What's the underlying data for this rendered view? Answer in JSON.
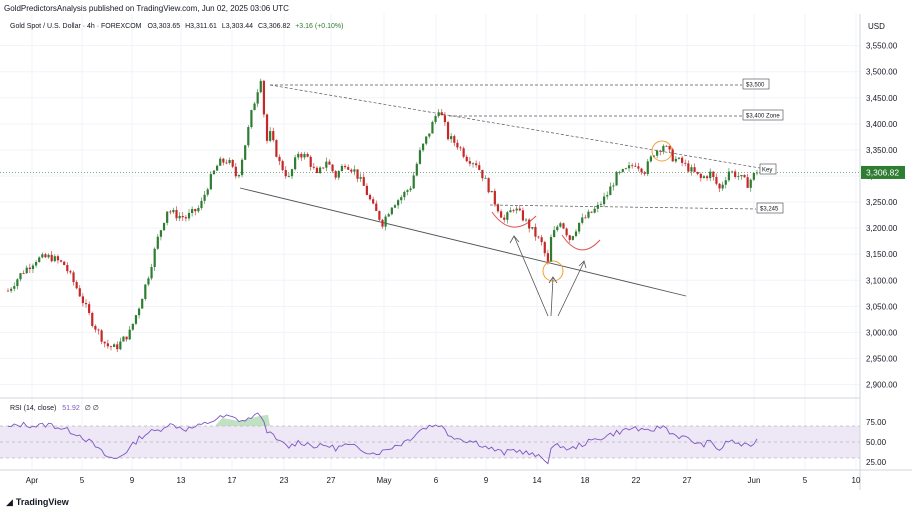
{
  "header": {
    "publisher": "GoldPredictorsAnalysis published on TradingView.com, Jun 02, 2025 03:06 UTC"
  },
  "symbol": {
    "name": "Gold Spot / U.S. Dollar · 4h · FOREXCOM",
    "open": "O3,303.65",
    "high": "H3,311.61",
    "low": "L3,303.44",
    "close": "C3,306.82",
    "change": "+3.16 (+0.10%)"
  },
  "price_axis": {
    "currency": "USD",
    "ticks": [
      "3,550.00",
      "3,500.00",
      "3,450.00",
      "3,400.00",
      "3,350.00",
      "3,300.00",
      "3,250.00",
      "3,200.00",
      "3,150.00",
      "3,100.00",
      "3,050.00",
      "3,000.00",
      "2,950.00",
      "2,900.00"
    ],
    "current_price": "3,306.82"
  },
  "rsi": {
    "label": "RSI (14, close)",
    "value": "51.92",
    "extra": "∅ ∅",
    "ticks": [
      "75.00",
      "50.00",
      "25.00"
    ]
  },
  "time_axis": {
    "ticks": [
      "Apr",
      "5",
      "9",
      "13",
      "17",
      "23",
      "27",
      "May",
      "6",
      "9",
      "14",
      "18",
      "22",
      "27",
      "Jun",
      "5",
      "10"
    ]
  },
  "annotations": {
    "level_3500": "$3,500",
    "level_3400": "$3,400 Zone",
    "key": "Key",
    "level_3245": "$3,245"
  },
  "footer": {
    "brand": "TradingView",
    "brand_icon": "tradingview-logo-icon"
  },
  "colors": {
    "up": "#2e7d32",
    "down": "#c62828",
    "rsi_line": "#7e57c2",
    "rsi_band": "#ede7f6",
    "current_price_bg": "#2e7d32",
    "highlight_circle": "#f0a030",
    "cup_arc": "#e05050"
  },
  "chart_data": {
    "type": "candlestick",
    "interval": "4h",
    "ylim": [
      2880,
      3580
    ],
    "rsi_ylim": [
      20,
      85
    ],
    "x_ticks": [
      "Apr",
      "5",
      "9",
      "13",
      "17",
      "23",
      "27",
      "May",
      "6",
      "9",
      "14",
      "18",
      "22",
      "27",
      "Jun",
      "5",
      "10"
    ],
    "y_ticks": [
      3550,
      3500,
      3450,
      3400,
      3350,
      3300,
      3250,
      3200,
      3150,
      3100,
      3050,
      3000,
      2950,
      2900
    ],
    "close_path": [
      [
        0,
        3080
      ],
      [
        1.5,
        3115
      ],
      [
        3,
        3140
      ],
      [
        4.5,
        3145
      ],
      [
        6,
        3130
      ],
      [
        7.5,
        3080
      ],
      [
        9,
        3020
      ],
      [
        10.5,
        2975
      ],
      [
        11.5,
        2970
      ],
      [
        13,
        3000
      ],
      [
        14,
        3050
      ],
      [
        15,
        3110
      ],
      [
        16,
        3180
      ],
      [
        17,
        3235
      ],
      [
        18,
        3225
      ],
      [
        19,
        3220
      ],
      [
        20.5,
        3240
      ],
      [
        21.5,
        3290
      ],
      [
        22.5,
        3325
      ],
      [
        23.5,
        3330
      ],
      [
        24.5,
        3295
      ],
      [
        25.5,
        3375
      ],
      [
        26,
        3420
      ],
      [
        27,
        3490
      ],
      [
        27.6,
        3365
      ],
      [
        28,
        3380
      ],
      [
        29,
        3325
      ],
      [
        30,
        3295
      ],
      [
        31,
        3345
      ],
      [
        32,
        3335
      ],
      [
        33,
        3300
      ],
      [
        34,
        3330
      ],
      [
        35,
        3300
      ],
      [
        36,
        3325
      ],
      [
        37,
        3310
      ],
      [
        38,
        3280
      ],
      [
        39,
        3240
      ],
      [
        40,
        3210
      ],
      [
        41,
        3245
      ],
      [
        42,
        3260
      ],
      [
        43,
        3280
      ],
      [
        44,
        3345
      ],
      [
        45,
        3385
      ],
      [
        46,
        3430
      ],
      [
        46.6,
        3400
      ],
      [
        47,
        3375
      ],
      [
        48,
        3360
      ],
      [
        49,
        3335
      ],
      [
        50,
        3325
      ],
      [
        51,
        3290
      ],
      [
        52,
        3250
      ],
      [
        53,
        3215
      ],
      [
        54,
        3240
      ],
      [
        55,
        3220
      ],
      [
        56,
        3195
      ],
      [
        57,
        3170
      ],
      [
        57.7,
        3130
      ],
      [
        58,
        3180
      ],
      [
        59,
        3215
      ],
      [
        60,
        3180
      ],
      [
        61,
        3210
      ],
      [
        62,
        3225
      ],
      [
        63,
        3240
      ],
      [
        64,
        3265
      ],
      [
        65,
        3300
      ],
      [
        66,
        3310
      ],
      [
        67,
        3325
      ],
      [
        68,
        3310
      ],
      [
        69,
        3345
      ],
      [
        70,
        3360
      ],
      [
        71,
        3335
      ],
      [
        72,
        3325
      ],
      [
        73,
        3310
      ],
      [
        74,
        3295
      ],
      [
        75,
        3305
      ],
      [
        76,
        3275
      ],
      [
        77,
        3310
      ],
      [
        78,
        3300
      ],
      [
        79,
        3285
      ],
      [
        80,
        3310
      ]
    ],
    "rsi_path": [
      [
        0,
        68
      ],
      [
        1.5,
        72
      ],
      [
        3,
        70
      ],
      [
        4.5,
        72
      ],
      [
        6,
        66
      ],
      [
        7.5,
        60
      ],
      [
        9,
        48
      ],
      [
        10.5,
        32
      ],
      [
        11.5,
        28
      ],
      [
        13,
        42
      ],
      [
        14,
        55
      ],
      [
        15,
        62
      ],
      [
        16,
        64
      ],
      [
        17,
        72
      ],
      [
        18,
        70
      ],
      [
        19,
        66
      ],
      [
        20.5,
        70
      ],
      [
        21.5,
        75
      ],
      [
        22.5,
        80
      ],
      [
        23.5,
        82
      ],
      [
        24.5,
        78
      ],
      [
        25.5,
        76
      ],
      [
        26,
        82
      ],
      [
        27,
        84
      ],
      [
        27.6,
        66
      ],
      [
        28,
        60
      ],
      [
        29,
        50
      ],
      [
        30,
        44
      ],
      [
        31,
        50
      ],
      [
        32,
        48
      ],
      [
        33,
        44
      ],
      [
        34,
        46
      ],
      [
        35,
        42
      ],
      [
        36,
        46
      ],
      [
        37,
        44
      ],
      [
        38,
        40
      ],
      [
        39,
        36
      ],
      [
        40,
        38
      ],
      [
        41,
        44
      ],
      [
        42,
        48
      ],
      [
        43,
        55
      ],
      [
        44,
        65
      ],
      [
        45,
        70
      ],
      [
        46,
        72
      ],
      [
        46.6,
        66
      ],
      [
        47,
        60
      ],
      [
        48,
        55
      ],
      [
        49,
        52
      ],
      [
        50,
        50
      ],
      [
        51,
        44
      ],
      [
        52,
        40
      ],
      [
        53,
        36
      ],
      [
        54,
        40
      ],
      [
        55,
        38
      ],
      [
        56,
        34
      ],
      [
        57,
        30
      ],
      [
        57.7,
        26
      ],
      [
        58,
        42
      ],
      [
        59,
        46
      ],
      [
        60,
        40
      ],
      [
        61,
        46
      ],
      [
        62,
        50
      ],
      [
        63,
        54
      ],
      [
        64,
        58
      ],
      [
        65,
        62
      ],
      [
        66,
        65
      ],
      [
        67,
        68
      ],
      [
        68,
        62
      ],
      [
        69,
        66
      ],
      [
        70,
        70
      ],
      [
        71,
        60
      ],
      [
        72,
        56
      ],
      [
        73,
        52
      ],
      [
        74,
        46
      ],
      [
        75,
        50
      ],
      [
        76,
        40
      ],
      [
        77,
        52
      ],
      [
        78,
        48
      ],
      [
        79,
        44
      ],
      [
        80,
        52
      ]
    ],
    "rsi_levels": [
      70,
      50,
      30
    ]
  }
}
